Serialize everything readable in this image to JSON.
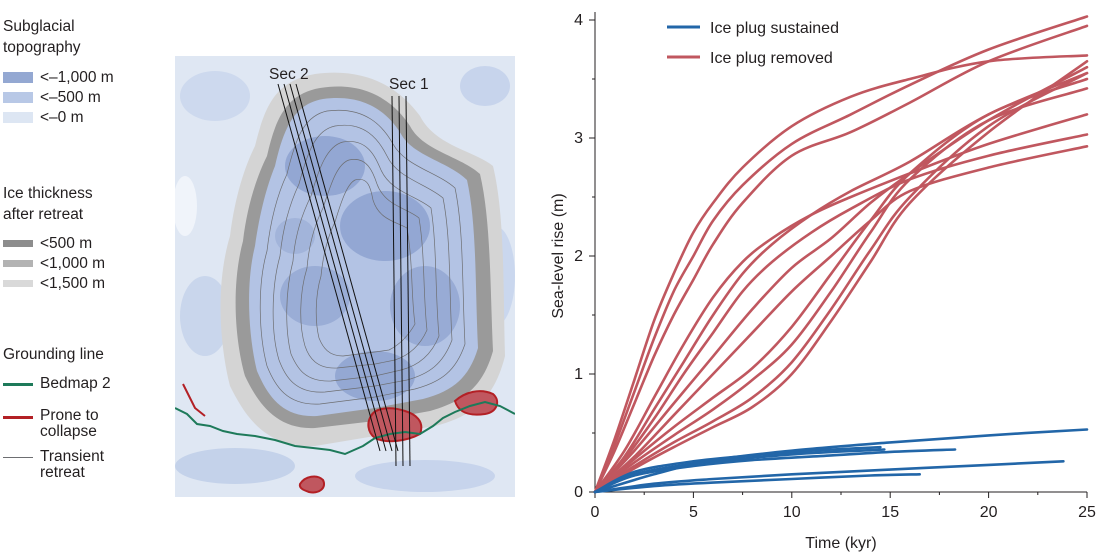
{
  "map_legend": {
    "topography": {
      "title_line1": "Subglacial",
      "title_line2": "topography",
      "items": [
        {
          "label": "<–1,000 m",
          "color": "#94a8d2"
        },
        {
          "label": "<–500 m",
          "color": "#b8c8e6"
        },
        {
          "label": "<–0 m",
          "color": "#dde6f3"
        }
      ]
    },
    "ice_thickness": {
      "title_line1": "Ice thickness",
      "title_line2": "after retreat",
      "items": [
        {
          "label": "<500 m",
          "color": "#8d8d8d"
        },
        {
          "label": "<1,000 m",
          "color": "#b3b3b3"
        },
        {
          "label": "<1,500 m",
          "color": "#d9d9d9"
        }
      ]
    },
    "grounding_line": {
      "title": "Grounding line",
      "items": [
        {
          "label": "Bedmap 2",
          "color": "#1e7a5a"
        },
        {
          "label_line1": "Prone to",
          "label_line2": "collapse",
          "color": "#b32025"
        },
        {
          "label_line1": "Transient",
          "label_line2": "retreat",
          "color": "#6d6e71"
        }
      ]
    }
  },
  "map": {
    "sections": [
      "Sec 2",
      "Sec 1"
    ]
  },
  "chart_data": {
    "type": "line",
    "xlabel": "Time (kyr)",
    "ylabel": "Sea-level rise (m)",
    "xlim": [
      0,
      25
    ],
    "ylim": [
      0,
      4
    ],
    "xticks": [
      0,
      5,
      10,
      15,
      20,
      25
    ],
    "yticks": [
      0,
      1,
      2,
      3,
      4
    ],
    "grid": false,
    "legend_position": "top-left",
    "series": [
      {
        "name": "Ice plug sustained",
        "color": "#2266a8",
        "lines": [
          {
            "x": [
              0,
              2,
              5,
              8,
              11,
              14.5
            ],
            "y": [
              0,
              0.17,
              0.26,
              0.31,
              0.35,
              0.38
            ]
          },
          {
            "x": [
              0,
              2,
              5,
              8,
              11,
              14.7
            ],
            "y": [
              0,
              0.15,
              0.24,
              0.29,
              0.33,
              0.36
            ]
          },
          {
            "x": [
              0,
              2,
              5,
              8,
              12,
              15,
              18.3
            ],
            "y": [
              0,
              0.14,
              0.22,
              0.27,
              0.31,
              0.34,
              0.36
            ]
          },
          {
            "x": [
              0,
              3,
              6,
              10,
              15,
              20,
              25
            ],
            "y": [
              0,
              0.15,
              0.27,
              0.35,
              0.42,
              0.48,
              0.53
            ]
          },
          {
            "x": [
              0,
              3,
              6,
              10,
              15,
              20,
              23.8
            ],
            "y": [
              0,
              0.07,
              0.11,
              0.15,
              0.19,
              0.23,
              0.26
            ]
          },
          {
            "x": [
              0,
              3,
              6,
              10,
              14,
              16.5
            ],
            "y": [
              0,
              0.05,
              0.08,
              0.11,
              0.14,
              0.15
            ]
          }
        ]
      },
      {
        "name": "Ice plug removed",
        "color": "#c0575f",
        "lines": [
          {
            "x": [
              0,
              1,
              2,
              3,
              4,
              5,
              6,
              7.5,
              10,
              13,
              16,
              20,
              25
            ],
            "y": [
              0,
              0.45,
              0.95,
              1.45,
              1.85,
              2.2,
              2.45,
              2.75,
              3.1,
              3.35,
              3.5,
              3.65,
              3.7
            ]
          },
          {
            "x": [
              0,
              1,
              2,
              3,
              4,
              5,
              6,
              7.5,
              10,
              13,
              16,
              20,
              25
            ],
            "y": [
              0,
              0.4,
              0.85,
              1.3,
              1.7,
              2.0,
              2.3,
              2.6,
              2.95,
              3.2,
              3.45,
              3.75,
              4.03
            ]
          },
          {
            "x": [
              0,
              1,
              2,
              3,
              4,
              5,
              6,
              7.5,
              10,
              13,
              16,
              20,
              25
            ],
            "y": [
              0,
              0.35,
              0.75,
              1.15,
              1.5,
              1.8,
              2.1,
              2.45,
              2.85,
              3.05,
              3.3,
              3.65,
              3.95
            ]
          },
          {
            "x": [
              0,
              1.5,
              3,
              4.5,
              6,
              7.5,
              9,
              11,
              13,
              16,
              20,
              25
            ],
            "y": [
              0,
              0.35,
              0.8,
              1.25,
              1.65,
              1.95,
              2.15,
              2.35,
              2.5,
              2.7,
              2.95,
              3.2
            ]
          },
          {
            "x": [
              0,
              1.5,
              3,
              4.5,
              6,
              7.5,
              9,
              11,
              13,
              16,
              20,
              25
            ],
            "y": [
              0,
              0.3,
              0.7,
              1.1,
              1.5,
              1.85,
              2.1,
              2.35,
              2.55,
              2.8,
              3.2,
              3.55
            ]
          },
          {
            "x": [
              0,
              1.5,
              3,
              4.5,
              6,
              7.5,
              9,
              11,
              13,
              16,
              20,
              25
            ],
            "y": [
              0,
              0.28,
              0.62,
              1.0,
              1.35,
              1.7,
              1.95,
              2.2,
              2.4,
              2.65,
              2.85,
              3.03
            ]
          },
          {
            "x": [
              0,
              2,
              4,
              6,
              8,
              10,
              12,
              14,
              16,
              20,
              25
            ],
            "y": [
              0,
              0.35,
              0.75,
              1.15,
              1.55,
              1.9,
              2.15,
              2.45,
              2.7,
              3.15,
              3.6
            ]
          },
          {
            "x": [
              0,
              2,
              4,
              6,
              8,
              10,
              12,
              14,
              16,
              20,
              25
            ],
            "y": [
              0,
              0.3,
              0.65,
              1.0,
              1.35,
              1.7,
              2.0,
              2.3,
              2.55,
              2.75,
              2.93
            ]
          },
          {
            "x": [
              0,
              2,
              4,
              6,
              8,
              10,
              12,
              14,
              16,
              20,
              25
            ],
            "y": [
              0,
              0.28,
              0.55,
              0.8,
              1.05,
              1.4,
              1.85,
              2.3,
              2.7,
              3.2,
              3.5
            ]
          },
          {
            "x": [
              0,
              2,
              4,
              6,
              8,
              10,
              12,
              14,
              16,
              20,
              25
            ],
            "y": [
              0,
              0.25,
              0.48,
              0.7,
              0.95,
              1.25,
              1.7,
              2.2,
              2.65,
              3.15,
              3.42
            ]
          },
          {
            "x": [
              0,
              2,
              4,
              6,
              8,
              10,
              12,
              14,
              16,
              20,
              25
            ],
            "y": [
              0,
              0.22,
              0.42,
              0.6,
              0.8,
              1.1,
              1.55,
              2.05,
              2.5,
              3.1,
              3.55
            ]
          },
          {
            "x": [
              0,
              2,
              4,
              6,
              8,
              10,
              12,
              14,
              16,
              20,
              25
            ],
            "y": [
              0,
              0.2,
              0.38,
              0.55,
              0.72,
              1.0,
              1.45,
              1.95,
              2.45,
              3.05,
              3.65
            ]
          }
        ]
      }
    ]
  }
}
